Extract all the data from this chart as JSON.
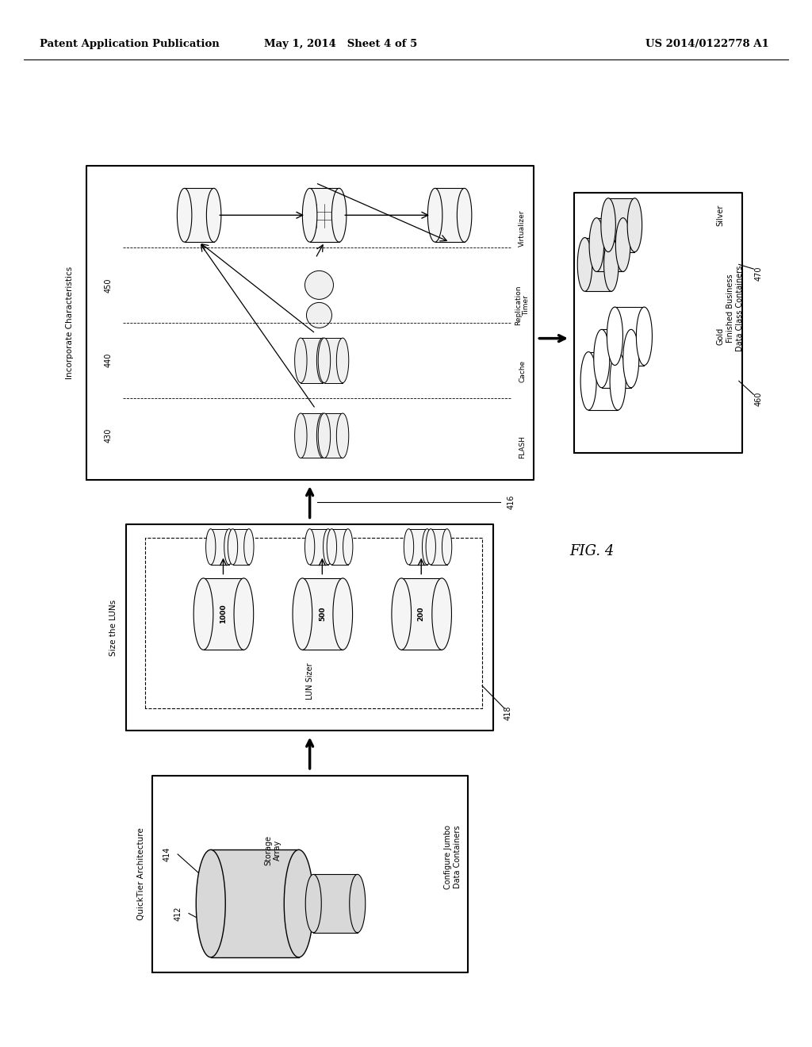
{
  "bg_color": "#ffffff",
  "header_left": "Patent Application Publication",
  "header_mid": "May 1, 2014   Sheet 4 of 5",
  "header_right": "US 2014/0122778 A1",
  "fig_label": "FIG. 4"
}
